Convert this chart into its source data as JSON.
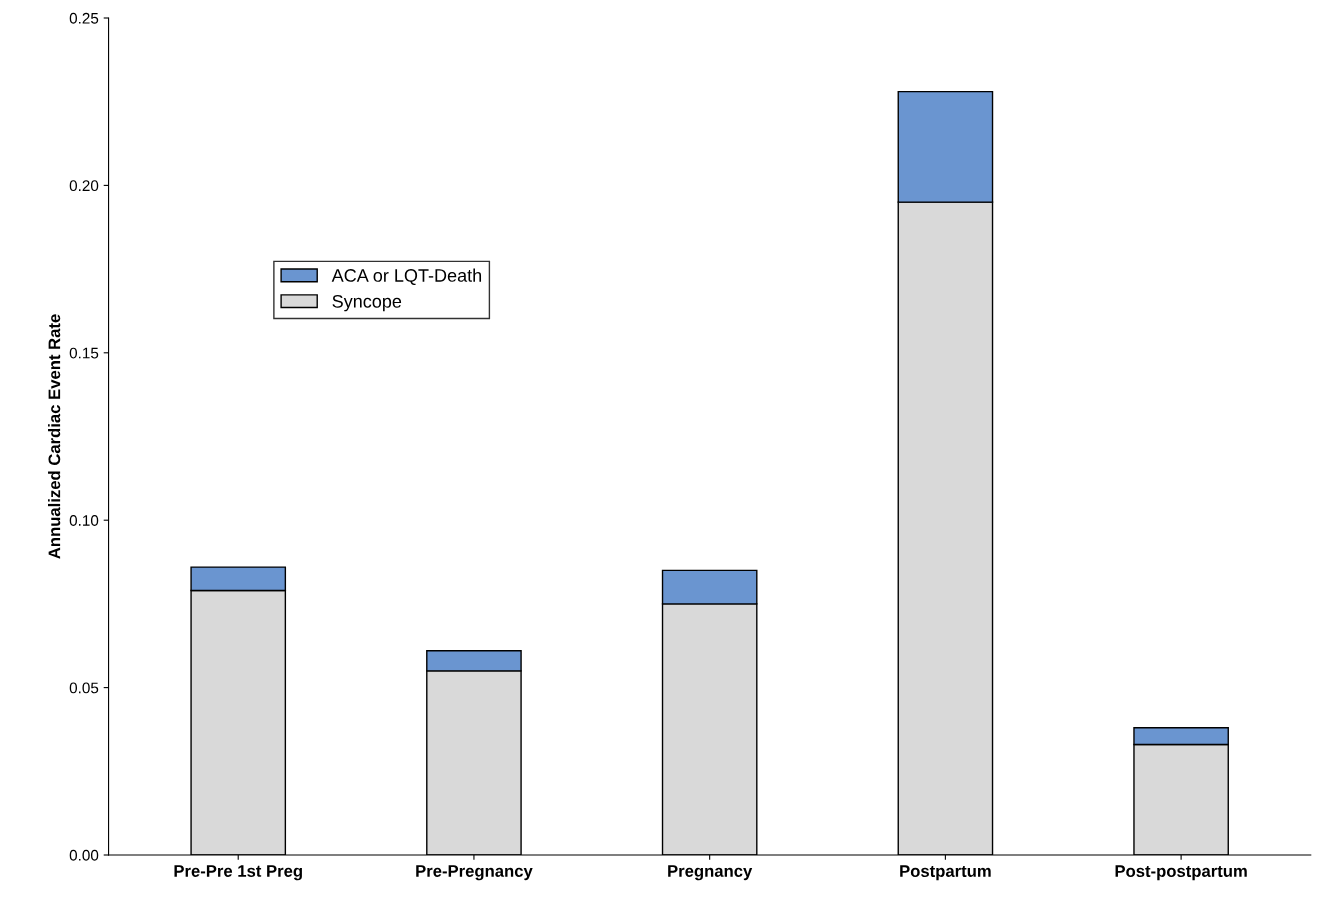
{
  "chart_data": {
    "type": "bar",
    "stacked": true,
    "ylabel": "Annualized Cardiac Event Rate",
    "categories": [
      "Pre-Pre 1st Preg",
      "Pre-Pregnancy",
      "Pregnancy",
      "Postpartum",
      "Post-postpartum"
    ],
    "series": [
      {
        "name": "Syncope",
        "color": "#d9d9d9",
        "values": [
          0.079,
          0.055,
          0.075,
          0.195,
          0.033
        ]
      },
      {
        "name": "ACA or LQT-Death",
        "color": "#6a95d0",
        "values": [
          0.007,
          0.006,
          0.01,
          0.033,
          0.005
        ]
      }
    ],
    "ylim": [
      0,
      0.25
    ],
    "yticks": [
      {
        "value": 0,
        "label": "0.00"
      },
      {
        "value": 0.05,
        "label": "0.05"
      },
      {
        "value": 0.1,
        "label": "0.10"
      },
      {
        "value": 0.15,
        "label": "0.15"
      },
      {
        "value": 0.2,
        "label": "0.20"
      },
      {
        "value": 0.25,
        "label": "0.25"
      }
    ],
    "legend": "upper left",
    "grid": false
  }
}
